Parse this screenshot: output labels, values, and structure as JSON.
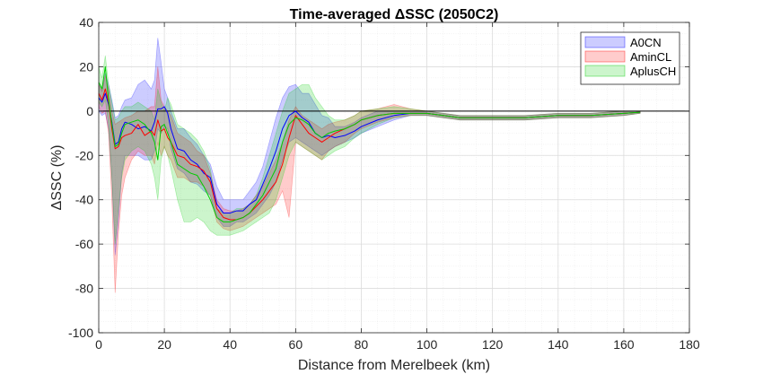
{
  "chart_data": {
    "type": "line",
    "title": "Time-averaged ΔSSC (2050C2)",
    "xlabel": "Distance from Merelbeek (km)",
    "ylabel": "ΔSSC (%)",
    "xlim": [
      0,
      180
    ],
    "ylim": [
      -100,
      40
    ],
    "x_ticks": [
      0,
      20,
      40,
      60,
      80,
      100,
      120,
      140,
      160,
      180
    ],
    "y_ticks": [
      -100,
      -80,
      -60,
      -40,
      -20,
      0,
      20,
      40
    ],
    "x_minor_step": 5,
    "y_minor_step": 5,
    "grid": true,
    "zero_line": true,
    "legend_position": "top-right",
    "series": [
      {
        "name": "A0CN",
        "color": "#0000ff",
        "x": [
          0,
          1,
          2,
          3,
          4,
          5,
          6,
          7,
          8,
          10,
          12,
          14,
          16,
          17,
          18,
          19,
          20,
          21,
          22,
          24,
          26,
          28,
          30,
          32,
          34,
          36,
          38,
          40,
          42,
          44,
          46,
          48,
          50,
          52,
          54,
          56,
          58,
          60,
          62,
          64,
          66,
          68,
          70,
          72,
          75,
          78,
          80,
          85,
          90,
          95,
          100,
          105,
          110,
          120,
          130,
          140,
          150,
          160,
          165
        ],
        "mean": [
          6,
          4,
          8,
          3,
          -5,
          -15,
          -14,
          -8,
          -5,
          -6,
          -8,
          -7,
          -9,
          -5,
          1,
          1,
          2,
          -1,
          -8,
          -17,
          -18,
          -22,
          -24,
          -28,
          -30,
          -42,
          -46,
          -46,
          -45,
          -45,
          -42,
          -40,
          -33,
          -26,
          -18,
          -8,
          -2,
          0,
          -3,
          -5,
          -10,
          -12,
          -11,
          -12,
          -11,
          -9,
          -7,
          -4,
          -2,
          -1,
          -1,
          -2,
          -3,
          -3,
          -3,
          -2,
          -2,
          -1,
          -0.5
        ],
        "upper": [
          12,
          9,
          17,
          12,
          5,
          -3,
          -2,
          2,
          5,
          6,
          12,
          14,
          10,
          14,
          33,
          22,
          10,
          6,
          0,
          -8,
          -8,
          -12,
          -15,
          -20,
          -24,
          -34,
          -40,
          -40,
          -40,
          -40,
          -36,
          -32,
          -25,
          -14,
          -3,
          6,
          11,
          12,
          8,
          8,
          3,
          -2,
          -3,
          -7,
          -7,
          -5,
          -3,
          0,
          0,
          0,
          0,
          -1,
          -2,
          -2,
          -2,
          -1,
          -1,
          0,
          0
        ],
        "lower": [
          0,
          -2,
          -1,
          -8,
          -30,
          -65,
          -50,
          -28,
          -20,
          -20,
          -20,
          -22,
          -22,
          -18,
          -8,
          -10,
          -7,
          -8,
          -17,
          -26,
          -28,
          -32,
          -33,
          -36,
          -38,
          -48,
          -52,
          -52,
          -50,
          -50,
          -48,
          -46,
          -42,
          -38,
          -32,
          -22,
          -14,
          -12,
          -14,
          -16,
          -18,
          -20,
          -18,
          -16,
          -14,
          -12,
          -10,
          -7,
          -4,
          -2,
          -2,
          -3,
          -4,
          -4,
          -4,
          -3,
          -3,
          -2,
          -1
        ]
      },
      {
        "name": "AminCL",
        "color": "#ff0000",
        "x": [
          0,
          1,
          2,
          3,
          4,
          5,
          6,
          7,
          8,
          10,
          12,
          14,
          16,
          17,
          18,
          19,
          20,
          21,
          22,
          24,
          26,
          28,
          30,
          32,
          34,
          36,
          38,
          40,
          42,
          44,
          46,
          48,
          50,
          52,
          54,
          56,
          58,
          60,
          62,
          64,
          66,
          68,
          70,
          72,
          75,
          78,
          80,
          85,
          90,
          95,
          100,
          105,
          110,
          120,
          130,
          140,
          150,
          160,
          165
        ],
        "mean": [
          8,
          5,
          10,
          4,
          -8,
          -17,
          -16,
          -12,
          -11,
          -10,
          -6,
          -11,
          -9,
          -11,
          -4,
          -9,
          -8,
          -12,
          -14,
          -20,
          -21,
          -24,
          -25,
          -27,
          -32,
          -44,
          -48,
          -49,
          -49,
          -48,
          -46,
          -43,
          -40,
          -36,
          -32,
          -24,
          -12,
          -2,
          -6,
          -10,
          -12,
          -14,
          -12,
          -10,
          -8,
          -6,
          -4,
          -2,
          -1,
          -1,
          -1,
          -2,
          -3,
          -3,
          -3,
          -2,
          -2,
          -1,
          -0.5
        ],
        "upper": [
          12,
          9,
          16,
          10,
          0,
          -6,
          -5,
          -4,
          -3,
          -2,
          0,
          0,
          2,
          2,
          20,
          5,
          2,
          0,
          -2,
          -10,
          -12,
          -14,
          -18,
          -20,
          -28,
          -40,
          -44,
          -45,
          -45,
          -44,
          -42,
          -38,
          -34,
          -28,
          -22,
          -14,
          -4,
          2,
          -2,
          -4,
          -6,
          -8,
          -6,
          -5,
          -4,
          -2,
          0,
          1,
          3,
          1,
          0,
          -1,
          -2,
          -2,
          -2,
          -1,
          -1,
          0,
          0
        ],
        "lower": [
          2,
          -1,
          0,
          -10,
          -40,
          -82,
          -55,
          -38,
          -30,
          -22,
          -18,
          -20,
          -20,
          -24,
          -14,
          -20,
          -16,
          -20,
          -22,
          -30,
          -30,
          -32,
          -32,
          -34,
          -38,
          -50,
          -53,
          -54,
          -53,
          -52,
          -50,
          -48,
          -46,
          -44,
          -42,
          -36,
          -48,
          -14,
          -16,
          -18,
          -20,
          -22,
          -18,
          -16,
          -14,
          -10,
          -8,
          -5,
          -3,
          -2,
          -2,
          -3,
          -4,
          -4,
          -4,
          -3,
          -3,
          -2,
          -1
        ]
      },
      {
        "name": "AplusCH",
        "color": "#00cc00",
        "x": [
          0,
          1,
          2,
          3,
          4,
          5,
          6,
          7,
          8,
          10,
          12,
          14,
          16,
          17,
          18,
          19,
          20,
          21,
          22,
          24,
          26,
          28,
          30,
          32,
          34,
          36,
          38,
          40,
          42,
          44,
          46,
          48,
          50,
          52,
          54,
          56,
          58,
          60,
          62,
          64,
          66,
          68,
          70,
          72,
          75,
          78,
          80,
          85,
          90,
          95,
          100,
          105,
          110,
          120,
          130,
          140,
          150,
          160,
          165
        ],
        "mean": [
          13,
          10,
          20,
          5,
          -6,
          -16,
          -15,
          -10,
          -6,
          -5,
          -4,
          -6,
          -10,
          -14,
          -22,
          -7,
          -6,
          -10,
          -14,
          -24,
          -26,
          -28,
          -29,
          -34,
          -40,
          -48,
          -50,
          -50,
          -49,
          -48,
          -46,
          -42,
          -38,
          -32,
          -26,
          -14,
          -6,
          -3,
          -4,
          -6,
          -10,
          -12,
          -10,
          -9,
          -8,
          -6,
          -4,
          -2,
          -1,
          -1,
          -1,
          -2,
          -3,
          -3,
          -3,
          -2,
          -2,
          -1,
          -0.5
        ],
        "upper": [
          20,
          15,
          25,
          12,
          4,
          -4,
          -3,
          0,
          2,
          2,
          4,
          2,
          0,
          -4,
          10,
          4,
          0,
          6,
          3,
          -6,
          -8,
          -10,
          -13,
          -18,
          -26,
          -44,
          -46,
          -46,
          -44,
          -44,
          -42,
          -38,
          -30,
          -20,
          -10,
          0,
          8,
          10,
          12,
          12,
          6,
          2,
          -2,
          -4,
          -4,
          -2,
          0,
          1,
          2,
          1,
          0,
          -1,
          -2,
          -2,
          -2,
          -1,
          -1,
          0,
          0
        ],
        "lower": [
          4,
          2,
          5,
          -6,
          -30,
          -60,
          -44,
          -30,
          -22,
          -18,
          -16,
          -18,
          -24,
          -30,
          -40,
          -22,
          -16,
          -20,
          -26,
          -40,
          -50,
          -50,
          -48,
          -50,
          -54,
          -56,
          -56,
          -56,
          -55,
          -54,
          -52,
          -50,
          -48,
          -46,
          -40,
          -30,
          -20,
          -14,
          -16,
          -18,
          -20,
          -22,
          -20,
          -18,
          -16,
          -12,
          -10,
          -6,
          -3,
          -2,
          -2,
          -3,
          -4,
          -4,
          -4,
          -3,
          -3,
          -2,
          -1
        ]
      }
    ]
  }
}
